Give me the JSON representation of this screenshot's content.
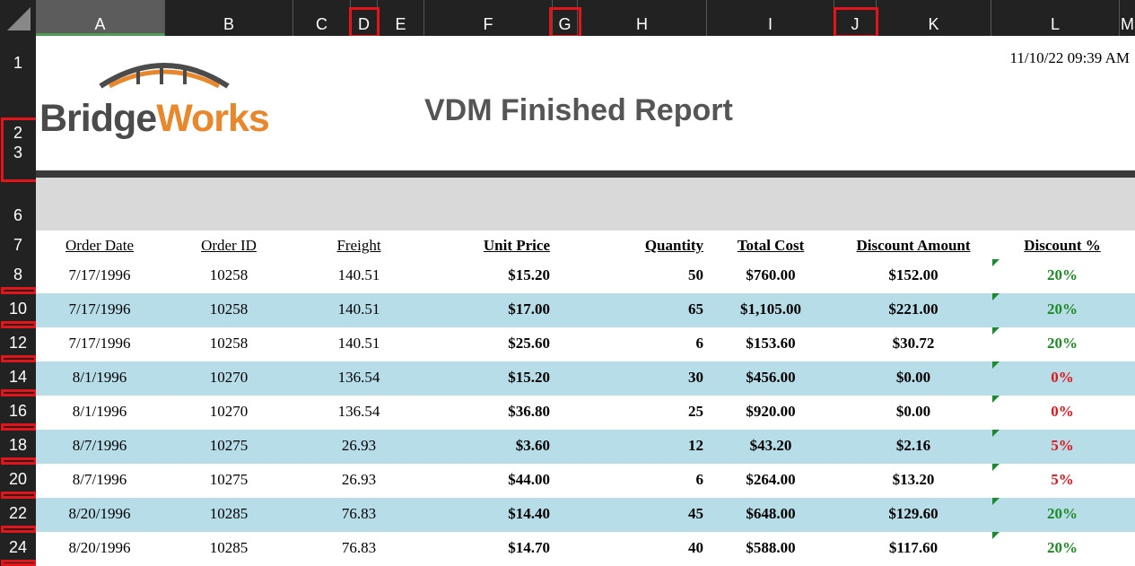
{
  "columns": [
    "A",
    "B",
    "C",
    "D",
    "E",
    "F",
    "G",
    "H",
    "I",
    "J",
    "K",
    "L",
    "M"
  ],
  "row_numbers": [
    "1",
    "2",
    "3",
    "6",
    "7",
    "8",
    "10",
    "12",
    "14",
    "16",
    "18",
    "20",
    "22",
    "24"
  ],
  "report": {
    "logo_part1": "Bridge",
    "logo_part2": "Works",
    "title": "VDM Finished Report",
    "timestamp": "11/10/22 09:39 AM"
  },
  "headers": {
    "order_date": "Order Date",
    "order_id": "Order ID",
    "freight": "Freight",
    "unit_price": "Unit Price",
    "quantity": "Quantity",
    "total_cost": "Total Cost",
    "discount_amount": "Discount Amount",
    "discount_pct": "Discount %"
  },
  "rows": [
    {
      "date": "7/17/1996",
      "id": "10258",
      "freight": "140.51",
      "price": "$15.20",
      "qty": "50",
      "total": "$760.00",
      "disc": "$152.00",
      "pct": "20%"
    },
    {
      "date": "7/17/1996",
      "id": "10258",
      "freight": "140.51",
      "price": "$17.00",
      "qty": "65",
      "total": "$1,105.00",
      "disc": "$221.00",
      "pct": "20%"
    },
    {
      "date": "7/17/1996",
      "id": "10258",
      "freight": "140.51",
      "price": "$25.60",
      "qty": "6",
      "total": "$153.60",
      "disc": "$30.72",
      "pct": "20%"
    },
    {
      "date": "8/1/1996",
      "id": "10270",
      "freight": "136.54",
      "price": "$15.20",
      "qty": "30",
      "total": "$456.00",
      "disc": "$0.00",
      "pct": "0%"
    },
    {
      "date": "8/1/1996",
      "id": "10270",
      "freight": "136.54",
      "price": "$36.80",
      "qty": "25",
      "total": "$920.00",
      "disc": "$0.00",
      "pct": "0%"
    },
    {
      "date": "8/7/1996",
      "id": "10275",
      "freight": "26.93",
      "price": "$3.60",
      "qty": "12",
      "total": "$43.20",
      "disc": "$2.16",
      "pct": "5%"
    },
    {
      "date": "8/7/1996",
      "id": "10275",
      "freight": "26.93",
      "price": "$44.00",
      "qty": "6",
      "total": "$264.00",
      "disc": "$13.20",
      "pct": "5%"
    },
    {
      "date": "8/20/1996",
      "id": "10285",
      "freight": "76.83",
      "price": "$14.40",
      "qty": "45",
      "total": "$648.00",
      "disc": "$129.60",
      "pct": "20%"
    },
    {
      "date": "8/20/1996",
      "id": "10285",
      "freight": "76.83",
      "price": "$14.70",
      "qty": "40",
      "total": "$588.00",
      "disc": "$117.60",
      "pct": "20%"
    }
  ],
  "colors": {
    "alt_row": "#b7dde8",
    "positive_discount": "#1e8a24",
    "zero_discount": "#e3141a",
    "highlight_box": "#e3141a",
    "logo_orange": "#e8872b",
    "logo_grey": "#4b4b4b"
  }
}
